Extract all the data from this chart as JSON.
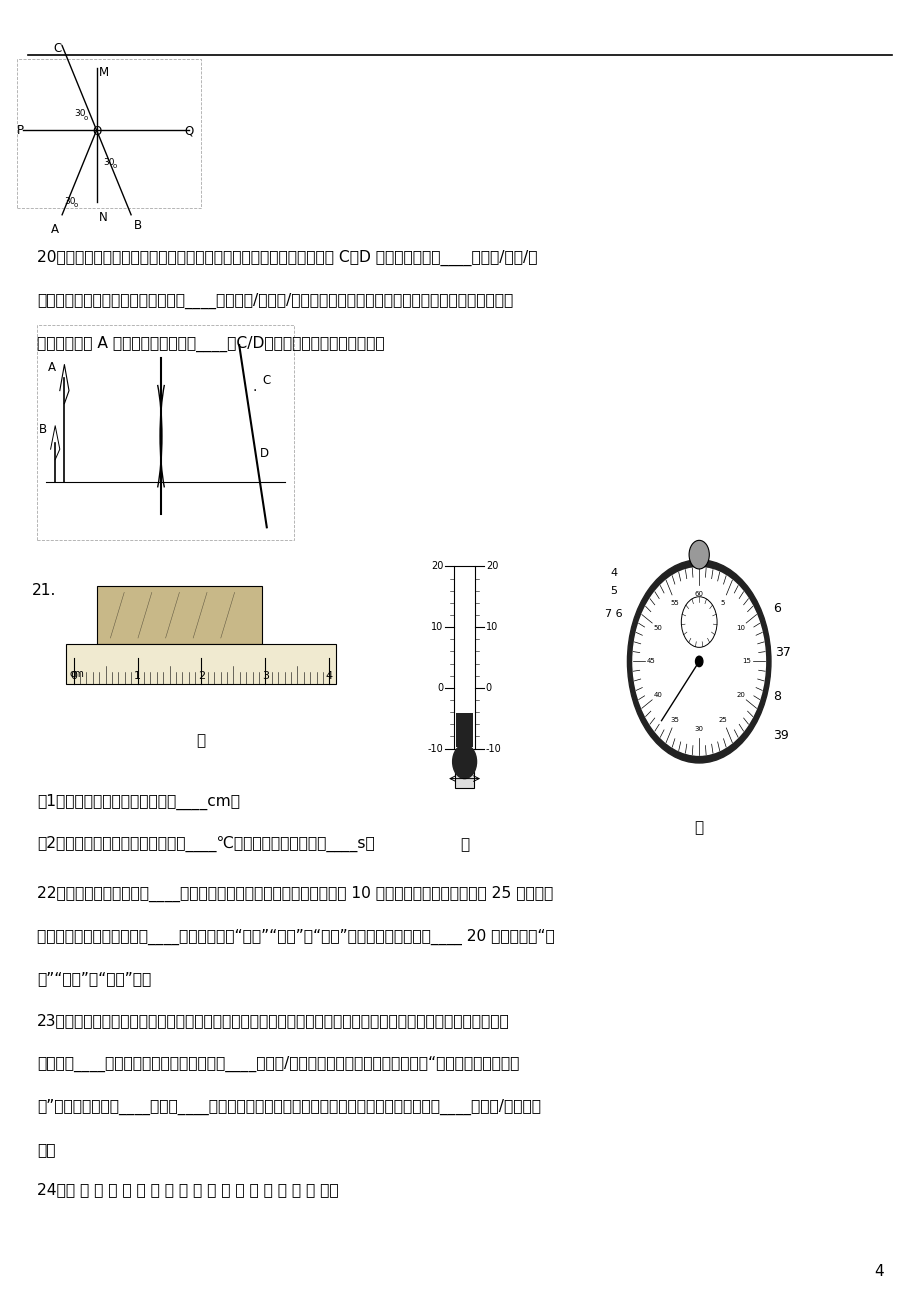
{
  "bg_color": "#ffffff",
  "text_color": "#000000",
  "page_number": "4",
  "q20_line1": "20．两支点燃的蜡烛、凸透镜和光屏分别置于如图所示的位置，光屏上 C、D 两处会得到清晰____（缩小/等大/放",
  "q20_line2": "大）的烛焉的像，生活中的光学器件____（照相机/投影仪/放大镜）就是利用这一成像规律工作的．如用一不透明",
  "q20_line3": "的厘纸板挡住 A 处的烛焉，在光屏上____（C/D）处他能得到一个清晰的像．",
  "q21_1": "（1）如甲图所示，木块的长度是____cm．",
  "q21_2": "（2）如乙图所示，温度计的示数为____℃，丙图中秒表的读数为____s．",
  "q22_line1": "22．在各种不同色光中，____，绿，蓝叫做三原色光，凸透镜的焦距为 10 厘米，将发光体放在高透镜 25 厘米的主",
  "q22_line2": "光轴上，所成的像是倒立，____的实像（选填“放大”“等于”或“缩小”），像到透镜的距离____ 20 厘米（选填“大",
  "q22_line3": "于”“等于”或“小于”）．",
  "q23_line1": "23．护士帮病人打针前，通常会先用酒精棉球对注射处进行消毒，此时病人会感到该处变凉爽，原因是酒精涂在该",
  "q23_line2": "处会发生____（填物态变化名称）现象，会____（吸收/放出）皮肤周围的热量．俗话说：“下雪天不冷，化雪天",
  "q23_line3": "冷”，是因为有的雪____成水或____成水蒸气时（填物态变化的名称），此物态变化过程都要____（吸收/放出）热",
  "q23_line4": "量．",
  "q24": "24．在 利 用 光 具 座 进 行 凸 透 镜 成 像 的 实 验 探 究 中："
}
